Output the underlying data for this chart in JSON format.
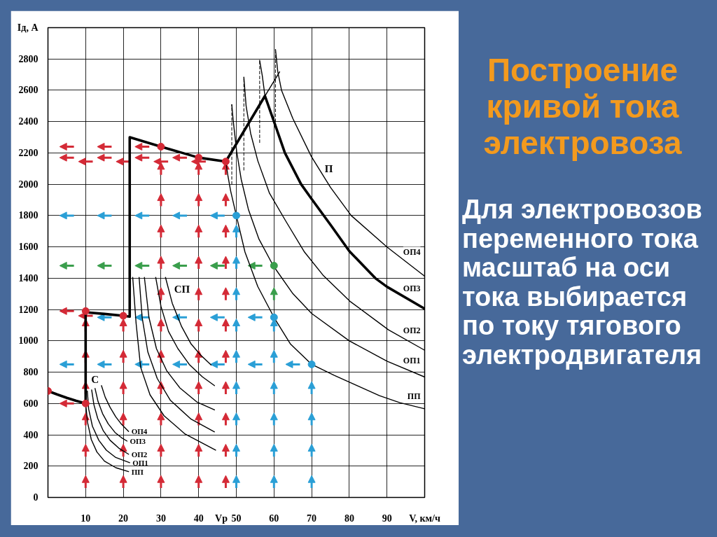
{
  "chart_data": {
    "type": "line",
    "title": "Построение кривой тока электровоза",
    "xlabel": "V, км/ч",
    "ylabel": "Iд, А",
    "xlim": [
      0,
      100
    ],
    "ylim": [
      0,
      3000
    ],
    "xticks": [
      {
        "value": 0,
        "label": null
      },
      10,
      20,
      30,
      40,
      {
        "value": 46,
        "label": "Vр"
      },
      50,
      60,
      70,
      80,
      90,
      {
        "value": 100,
        "label": null
      }
    ],
    "yticks": [
      0,
      200,
      400,
      600,
      800,
      1000,
      1200,
      1400,
      1600,
      1800,
      2000,
      2200,
      2400,
      2600,
      2800,
      {
        "value": 3000,
        "label": null
      }
    ],
    "grid": true,
    "line_style": "solid",
    "annotations": [
      "Для электровозов переменного тока масштаб на оси тока выбирается по току тягового электродвигателя",
      {
        "text": "С",
        "x": 10,
        "y": 755
      },
      {
        "text": "СП",
        "x": 32,
        "y": 1330
      },
      {
        "text": "П",
        "x": 72,
        "y": 2097
      }
    ],
    "series": [
      {
        "name": "ОП3",
        "color": "#000000",
        "x": [
          0,
          2.5,
          5,
          7.5,
          10,
          10,
          11,
          15,
          20,
          21.7,
          21.7,
          30,
          40,
          47.2,
          57.6,
          60,
          62.9,
          67.2,
          70,
          75.2,
          80,
          86.9,
          90,
          100
        ],
        "values": [
          680,
          657,
          636,
          617,
          600,
          1190,
          1180,
          1172,
          1160,
          1155,
          2300,
          2240,
          2170,
          2145,
          2564,
          2400,
          2200,
          2000,
          1906,
          1735,
          1573,
          1400,
          1345,
          1205
        ]
      },
      {
        "color": "#000000",
        "x": [
          56.2,
          56.9,
          57.6
        ],
        "values": [
          2791,
          2692,
          2564
        ]
      },
      {
        "color": "#000000",
        "x": [
          57.6,
          61.5
        ],
        "values": [
          2564,
          2718
        ]
      },
      {
        "name": "ОП4",
        "color": "#000000",
        "x": [
          60.4,
          61,
          62,
          65,
          69.9,
          75,
          80.5,
          90.1,
          100
        ],
        "values": [
          2860,
          2720,
          2600,
          2420,
          2178,
          1980,
          1800,
          1597,
          1413
        ]
      },
      {
        "name": "ОП2",
        "color": "#000000",
        "x": [
          52,
          52.6,
          53.8,
          55.7,
          58.8,
          63.1,
          68.1,
          73,
          80.3,
          90.4,
          100
        ],
        "values": [
          2684,
          2500,
          2325,
          2150,
          1943,
          1766,
          1567,
          1420,
          1250,
          1070,
          940
        ]
      },
      {
        "name": "ОП1",
        "color": "#000000",
        "x": [
          48.8,
          49.2,
          50.1,
          51.3,
          53.2,
          56,
          59.8,
          65,
          70,
          80,
          90,
          100
        ],
        "values": [
          2508,
          2400,
          2208,
          2031,
          1840,
          1650,
          1480,
          1302,
          1175,
          1000,
          870,
          769
        ]
      },
      {
        "name": "ПП",
        "color": "#000000",
        "x": [
          47.2,
          47.8,
          48.5,
          50,
          52.3,
          55.7,
          60,
          64.4,
          70,
          76,
          82,
          88,
          93.4,
          100
        ],
        "values": [
          2145,
          2050,
          1957,
          1800,
          1567,
          1347,
          1150,
          979,
          850,
          780,
          715,
          650,
          605,
          566
        ]
      },
      {
        "name": "ОП4",
        "color": "#000000",
        "x": [
          14.2,
          15.2,
          16.5,
          18,
          19.5,
          21.4
        ],
        "values": [
          714,
          640,
          575,
          515,
          468,
          421
        ]
      },
      {
        "name": "ОП3",
        "color": "#000000",
        "x": [
          12.5,
          13.3,
          14.5,
          16,
          17.8,
          19.5,
          21
        ],
        "values": [
          696,
          612,
          535,
          470,
          415,
          382,
          360
        ]
      },
      {
        "name": "ОП2",
        "color": "#000000",
        "x": [
          11.6,
          12.2,
          13.2,
          14.7,
          16.5,
          18.8,
          21.4
        ],
        "values": [
          687,
          592,
          505,
          425,
          365,
          315,
          276
        ]
      },
      {
        "name": "ОП1",
        "color": "#000000",
        "x": [
          10.45,
          10.8,
          11.8,
          13.5,
          15.5,
          18,
          21.7
        ],
        "values": [
          680,
          565,
          455,
          365,
          302,
          255,
          222
        ]
      },
      {
        "name": "ПП",
        "color": "#000000",
        "x": [
          10,
          10.5,
          11.5,
          13,
          15,
          18,
          21.4
        ],
        "values": [
          600,
          480,
          370,
          290,
          232,
          190,
          165
        ]
      },
      {
        "color": "#000000",
        "x": [
          22.5,
          23.4,
          24.6,
          27.1,
          30.8,
          36.4,
          44.5
        ],
        "values": [
          1405,
          1111,
          831,
          655,
          522,
          405,
          302
        ]
      },
      {
        "color": "#000000",
        "x": [
          24.2,
          25,
          26.5,
          29,
          32.5,
          38,
          44.2
        ],
        "values": [
          1405,
          1150,
          930,
          760,
          620,
          500,
          419
        ]
      },
      {
        "color": "#000000",
        "x": [
          25.6,
          26.8,
          28.8,
          31.5,
          35,
          39.5,
          44.2
        ],
        "values": [
          1405,
          1150,
          950,
          810,
          700,
          610,
          559
        ]
      },
      {
        "color": "#000000",
        "x": [
          28.6,
          30,
          32,
          34.5,
          37.5,
          41,
          44.2
        ],
        "values": [
          1405,
          1220,
          1060,
          950,
          850,
          770,
          714
        ]
      },
      {
        "color": "#000000",
        "x": [
          31.2,
          33,
          35.5,
          38,
          40.5,
          43.3
        ],
        "values": [
          1405,
          1240,
          1090,
          980,
          910,
          846
        ]
      },
      {
        "color": "#000000",
        "line_style": "dashed",
        "x": [
          48.8,
          48.8
        ],
        "values": [
          2000,
          2508
        ]
      },
      {
        "color": "#000000",
        "line_style": "dashed",
        "x": [
          52,
          52
        ],
        "values": [
          2090,
          2684
        ]
      },
      {
        "color": "#000000",
        "line_style": "dashed",
        "x": [
          56.2,
          56.2
        ],
        "values": [
          2266,
          2791
        ]
      },
      {
        "color": "#000000",
        "line_style": "dashed",
        "x": [
          60.4,
          60.4
        ],
        "values": [
          2400,
          2860
        ]
      },
      {
        "type": "scatter",
        "marker": "circle",
        "color": "#d42a36",
        "x": [
          0,
          10,
          10,
          20,
          30,
          40,
          47.2
        ],
        "values": [
          680,
          600,
          1190,
          1160,
          2240,
          2170,
          2145
        ]
      },
      {
        "type": "scatter",
        "marker": "circle",
        "color": "#2a9fd6",
        "x": [
          50,
          60,
          70
        ],
        "values": [
          1800,
          1150,
          850
        ]
      },
      {
        "type": "scatter",
        "marker": "circle",
        "color": "#3a9e4c",
        "x": [
          60
        ],
        "values": [
          1480
        ]
      }
    ]
  }
}
